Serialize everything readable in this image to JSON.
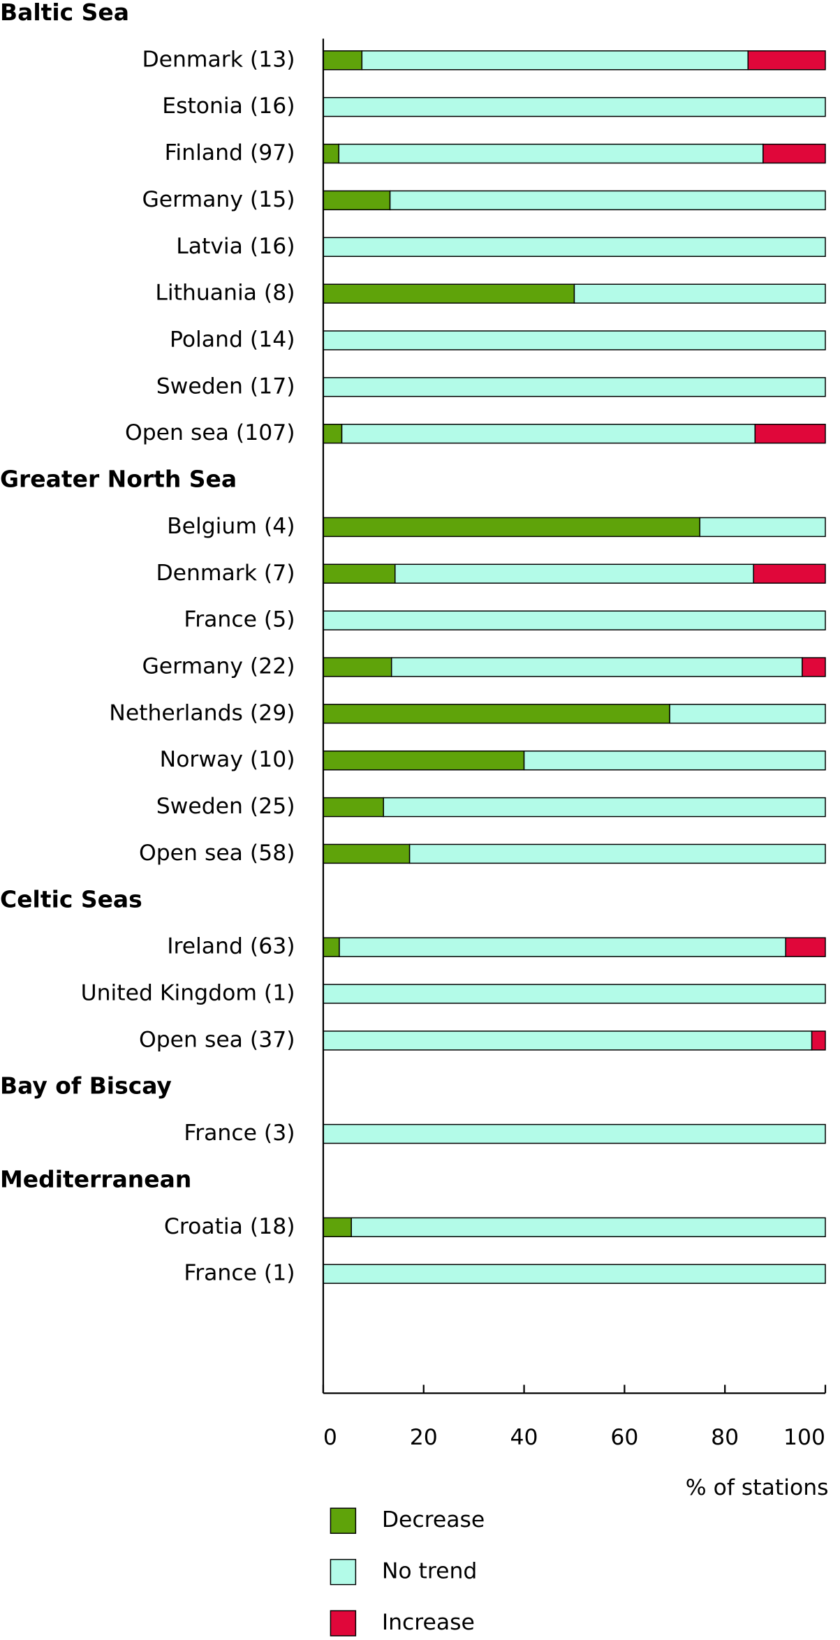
{
  "chart_data": {
    "type": "stacked-barh",
    "categories": [
      "Baltic Sea",
      "Denmark (13)",
      "Estonia (16)",
      "Finland (97)",
      "Germany (15)",
      "Latvia (16)",
      "Lithuania (8)",
      "Poland (14)",
      "Sweden (17)",
      "Open sea (107)",
      "Greater North Sea",
      "Belgium (4)",
      "Denmark (7)",
      "France (5)",
      "Germany (22)",
      "Netherlands (29)",
      "Norway (10)",
      "Sweden (25)",
      "Open sea (58)",
      "Celtic Seas",
      "Ireland (63)",
      "United Kingdom (1)",
      "Open sea (37)",
      "Bay of Biscay",
      "France (3)",
      "Mediterranean",
      "Croatia (18)",
      "France (1)"
    ],
    "series": [
      {
        "name": "Decrease",
        "color": "#5fa30a",
        "values": [
          null,
          7.7,
          0,
          3.1,
          13.3,
          0,
          50,
          0,
          0,
          3.7,
          null,
          75,
          14.3,
          0,
          13.6,
          69,
          40,
          12,
          17.2,
          null,
          3.2,
          0,
          0,
          null,
          0,
          null,
          5.6,
          0
        ]
      },
      {
        "name": "No trend",
        "color": "#b3fbe8",
        "values": [
          null,
          76.9,
          100,
          84.5,
          86.7,
          100,
          50,
          100,
          100,
          82.3,
          null,
          25,
          71.4,
          100,
          81.8,
          31,
          60,
          88,
          82.8,
          null,
          88.9,
          100,
          97.3,
          null,
          100,
          null,
          94.4,
          100
        ]
      },
      {
        "name": "Increase",
        "color": "#e0073a",
        "values": [
          null,
          15.4,
          0,
          12.4,
          0,
          0,
          0,
          0,
          0,
          14,
          null,
          0,
          14.3,
          0,
          4.6,
          0,
          0,
          0,
          0,
          null,
          7.9,
          0,
          2.7,
          null,
          0,
          null,
          0,
          0
        ]
      }
    ],
    "xlabel": "% of stations",
    "xlim": [
      0,
      100
    ],
    "xticks": [
      0,
      20,
      40,
      60,
      80,
      100
    ],
    "legend": "bottom"
  }
}
